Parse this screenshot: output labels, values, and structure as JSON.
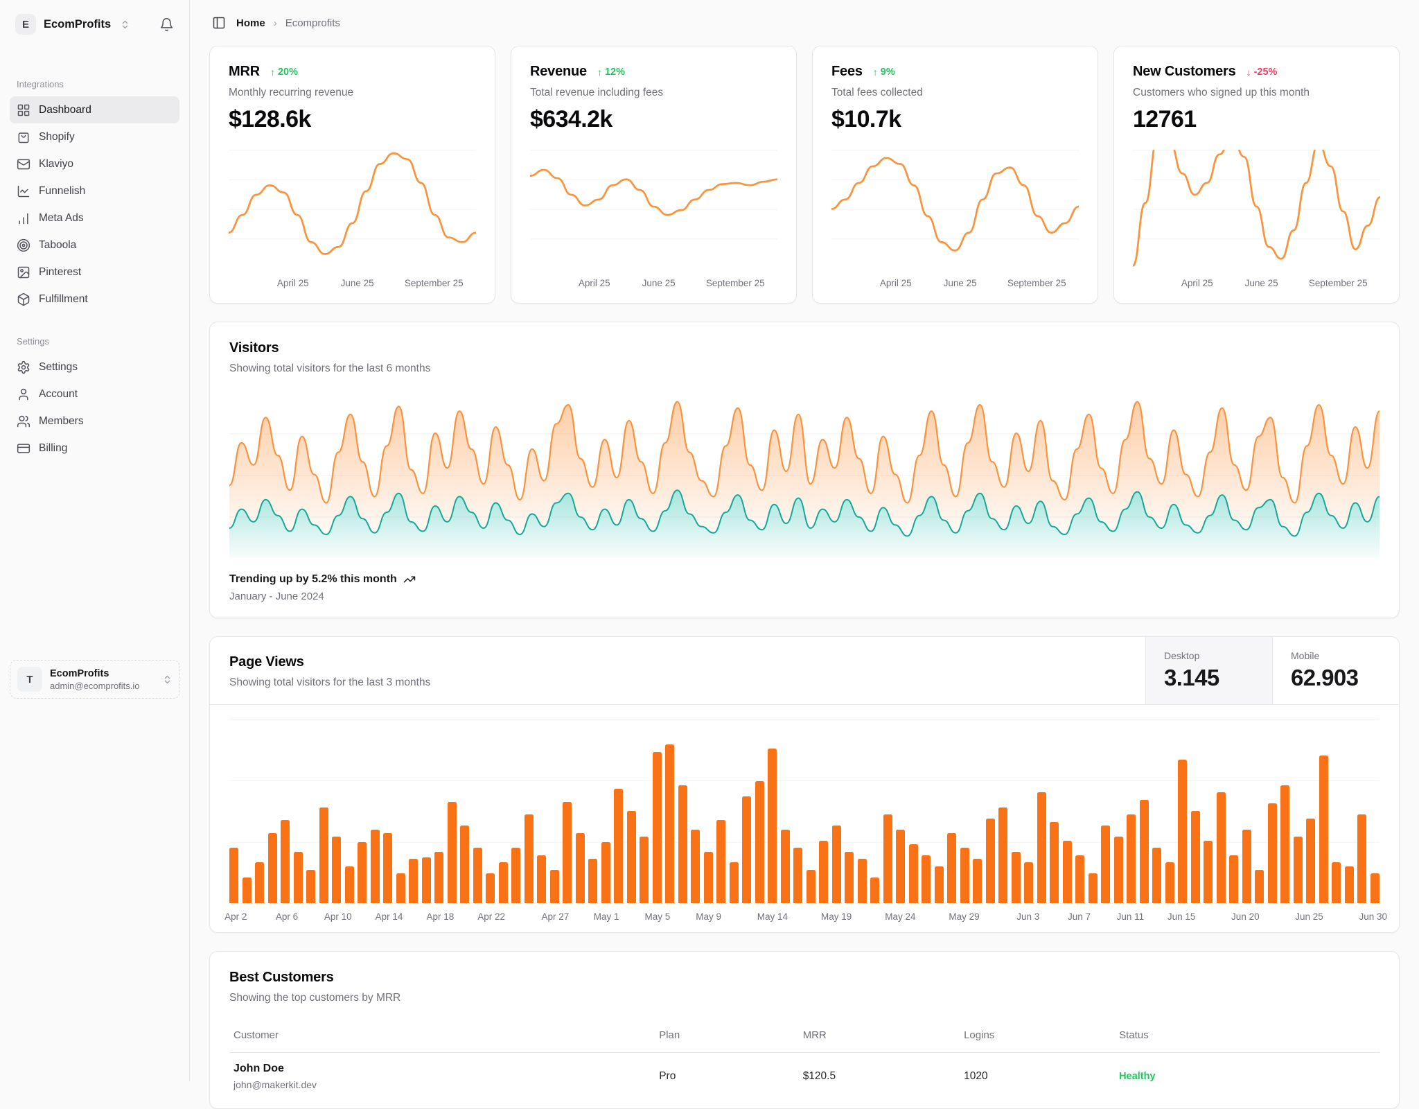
{
  "brand": {
    "initial": "E",
    "name": "EcomProfits"
  },
  "header": {
    "breadcrumb_home": "Home",
    "breadcrumb_current": "Ecomprofits"
  },
  "sidebar": {
    "sections": [
      {
        "label": "Integrations",
        "items": [
          {
            "label": "Dashboard",
            "active": true
          },
          {
            "label": "Shopify"
          },
          {
            "label": "Klaviyo"
          },
          {
            "label": "Funnelish"
          },
          {
            "label": "Meta Ads"
          },
          {
            "label": "Taboola"
          },
          {
            "label": "Pinterest"
          },
          {
            "label": "Fulfillment"
          }
        ]
      },
      {
        "label": "Settings",
        "items": [
          {
            "label": "Settings"
          },
          {
            "label": "Account"
          },
          {
            "label": "Members"
          },
          {
            "label": "Billing"
          }
        ]
      }
    ],
    "user": {
      "initial": "T",
      "name": "EcomProfits",
      "email": "admin@ecomprofits.io"
    }
  },
  "stat_cards": [
    {
      "title": "MRR",
      "trend": "20%",
      "direction": "up",
      "subtitle": "Monthly recurring revenue",
      "value": "$128.6k"
    },
    {
      "title": "Revenue",
      "trend": "12%",
      "direction": "up",
      "subtitle": "Total revenue including fees",
      "value": "$634.2k"
    },
    {
      "title": "Fees",
      "trend": "9%",
      "direction": "up",
      "subtitle": "Total fees collected",
      "value": "$10.7k"
    },
    {
      "title": "New Customers",
      "trend": "-25%",
      "direction": "down",
      "subtitle": "Customers who signed up this month",
      "value": "12761"
    }
  ],
  "visitors": {
    "title": "Visitors",
    "subtitle": "Showing total visitors for the last 6 months",
    "footer_bold": "Trending up by 5.2% this month",
    "footer_sub": "January - June 2024"
  },
  "page_views": {
    "title": "Page Views",
    "subtitle": "Showing total visitors for the last 3 months",
    "desktop_label": "Desktop",
    "desktop_value": "3.145",
    "mobile_label": "Mobile",
    "mobile_value": "62.903"
  },
  "best_customers": {
    "title": "Best Customers",
    "subtitle": "Showing the top customers by MRR",
    "columns": [
      "Customer",
      "Plan",
      "MRR",
      "Logins",
      "Status"
    ],
    "rows": [
      {
        "name": "John Doe",
        "email": "john@makerkit.dev",
        "plan": "Pro",
        "mrr": "$120.5",
        "logins": "1020",
        "status": "Healthy"
      }
    ]
  },
  "colors": {
    "line_orange": "#fb923c",
    "bar_orange": "#f97316",
    "teal_line": "#14a897",
    "green": "#22c55e",
    "red": "#f43f5e"
  },
  "chart_data": [
    {
      "type": "line",
      "title": "MRR sparkline",
      "x_ticks": [
        "April 25",
        "June 25",
        "September 25"
      ],
      "values": [
        30,
        45,
        62,
        70,
        64,
        45,
        22,
        12,
        18,
        38,
        65,
        88,
        97,
        92,
        72,
        45,
        26,
        22,
        30
      ]
    },
    {
      "type": "line",
      "title": "Revenue sparkline",
      "x_ticks": [
        "April 25",
        "June 25",
        "September 25"
      ],
      "values": [
        78,
        83,
        76,
        62,
        53,
        58,
        70,
        75,
        66,
        52,
        45,
        49,
        58,
        66,
        71,
        72,
        70,
        73,
        75
      ]
    },
    {
      "type": "line",
      "title": "Fees sparkline",
      "x_ticks": [
        "April 25",
        "June 25",
        "September 25"
      ],
      "values": [
        50,
        58,
        72,
        86,
        93,
        88,
        70,
        44,
        22,
        15,
        30,
        58,
        80,
        85,
        70,
        44,
        30,
        38,
        52
      ]
    },
    {
      "type": "line",
      "title": "New Customers sparkline",
      "x_ticks": [
        "April 25",
        "June 25",
        "September 25"
      ],
      "values": [
        2,
        55,
        110,
        106,
        80,
        62,
        72,
        96,
        112,
        94,
        52,
        18,
        8,
        32,
        72,
        105,
        86,
        48,
        16,
        36,
        60
      ]
    },
    {
      "type": "area",
      "title": "Visitors",
      "x_range": "January - June 2024",
      "legend": "none",
      "series": [
        {
          "name": "orange-top",
          "values": [
            45,
            72,
            58,
            88,
            64,
            42,
            76,
            52,
            34,
            66,
            90,
            60,
            38,
            70,
            95,
            55,
            40,
            78,
            56,
            92,
            68,
            46,
            82,
            58,
            36,
            68,
            48,
            84,
            96,
            62,
            44,
            74,
            50,
            86,
            60,
            40,
            72,
            98,
            66,
            48,
            38,
            70,
            94,
            58,
            42,
            80,
            54,
            90,
            46,
            74,
            56,
            88,
            62,
            40,
            76,
            52,
            34,
            64,
            92,
            58,
            38,
            72,
            96,
            60,
            44,
            78,
            54,
            86,
            48,
            36,
            68,
            90,
            56,
            40,
            74,
            98,
            62,
            46,
            80,
            52,
            38,
            66,
            94,
            58,
            42,
            76,
            88,
            50,
            34,
            70,
            96,
            64,
            46,
            82,
            56,
            92
          ]
        },
        {
          "name": "teal-bottom",
          "values": [
            18,
            30,
            22,
            36,
            26,
            16,
            30,
            20,
            14,
            26,
            38,
            24,
            15,
            28,
            40,
            22,
            16,
            32,
            22,
            38,
            28,
            18,
            34,
            23,
            14,
            27,
            19,
            34,
            40,
            25,
            17,
            30,
            20,
            36,
            24,
            16,
            29,
            42,
            27,
            19,
            15,
            28,
            39,
            23,
            17,
            33,
            21,
            37,
            18,
            30,
            22,
            36,
            25,
            16,
            31,
            20,
            13,
            26,
            38,
            23,
            15,
            29,
            40,
            24,
            17,
            32,
            21,
            35,
            19,
            14,
            27,
            37,
            22,
            16,
            30,
            41,
            25,
            18,
            33,
            20,
            15,
            26,
            39,
            23,
            17,
            31,
            36,
            19,
            13,
            28,
            40,
            26,
            18,
            34,
            22,
            38
          ]
        }
      ]
    },
    {
      "type": "bar",
      "title": "Page Views",
      "values": [
        30,
        14,
        22,
        38,
        45,
        28,
        18,
        52,
        36,
        20,
        33,
        40,
        38,
        16,
        24,
        25,
        28,
        55,
        42,
        30,
        16,
        22,
        30,
        48,
        26,
        18,
        55,
        38,
        24,
        33,
        62,
        50,
        36,
        82,
        86,
        64,
        40,
        28,
        45,
        22,
        58,
        66,
        84,
        40,
        30,
        18,
        34,
        42,
        28,
        24,
        14,
        48,
        40,
        32,
        26,
        20,
        38,
        30,
        24,
        46,
        52,
        28,
        22,
        60,
        44,
        34,
        26,
        16,
        42,
        36,
        48,
        56,
        30,
        22,
        78,
        50,
        34,
        60,
        26,
        40,
        18,
        54,
        64,
        36,
        46,
        80,
        22,
        20,
        48,
        16
      ],
      "ticks": [
        {
          "i": 0,
          "label": "Apr 2"
        },
        {
          "i": 4,
          "label": "Apr 6"
        },
        {
          "i": 8,
          "label": "Apr 10"
        },
        {
          "i": 12,
          "label": "Apr 14"
        },
        {
          "i": 16,
          "label": "Apr 18"
        },
        {
          "i": 20,
          "label": "Apr 22"
        },
        {
          "i": 25,
          "label": "Apr 27"
        },
        {
          "i": 29,
          "label": "May 1"
        },
        {
          "i": 33,
          "label": "May 5"
        },
        {
          "i": 37,
          "label": "May 9"
        },
        {
          "i": 42,
          "label": "May 14"
        },
        {
          "i": 47,
          "label": "May 19"
        },
        {
          "i": 52,
          "label": "May 24"
        },
        {
          "i": 57,
          "label": "May 29"
        },
        {
          "i": 62,
          "label": "Jun 3"
        },
        {
          "i": 66,
          "label": "Jun 7"
        },
        {
          "i": 70,
          "label": "Jun 11"
        },
        {
          "i": 74,
          "label": "Jun 15"
        },
        {
          "i": 79,
          "label": "Jun 20"
        },
        {
          "i": 84,
          "label": "Jun 25"
        },
        {
          "i": 89,
          "label": "Jun 30"
        }
      ]
    }
  ]
}
